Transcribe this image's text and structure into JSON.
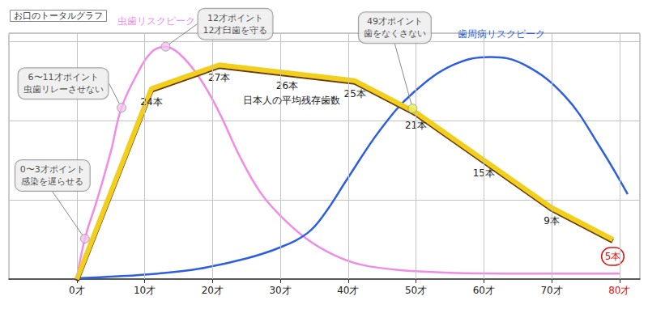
{
  "chart_data": {
    "type": "line",
    "title": "お口のトータルグラフ",
    "xlim": [
      -10,
      83
    ],
    "xticks": [
      {
        "value": 0,
        "label": "0才"
      },
      {
        "value": 10,
        "label": "10才"
      },
      {
        "value": 20,
        "label": "20才"
      },
      {
        "value": 30,
        "label": "30才"
      },
      {
        "value": 40,
        "label": "40才"
      },
      {
        "value": 50,
        "label": "50才"
      },
      {
        "value": 60,
        "label": "60才"
      },
      {
        "value": 70,
        "label": "70才"
      },
      {
        "value": 80,
        "label": "80才"
      }
    ],
    "ylim": [
      0,
      31
    ],
    "yticks": [
      0,
      10,
      20,
      30
    ],
    "grid": true,
    "tick_labels": "x",
    "series": [
      {
        "name": "虫歯リスクピーク",
        "color": "#f08ce6",
        "line_style": "solid",
        "x": [
          0,
          1.2,
          3,
          5,
          6.6,
          9,
          11,
          13,
          15,
          18,
          21,
          24,
          27,
          30,
          34,
          38,
          42,
          48,
          55,
          65,
          80
        ],
        "values": [
          0,
          5.1,
          10,
          16,
          21.6,
          26,
          28.6,
          29.3,
          28.5,
          25.5,
          21,
          15.5,
          11,
          8,
          5,
          3,
          1.8,
          1.1,
          0.8,
          0.7,
          0.7
        ]
      },
      {
        "name": "歯周病リスクピーク",
        "color": "#2d5fe0",
        "line_style": "solid",
        "x": [
          0,
          5,
          12,
          18,
          25,
          30,
          34,
          36.5,
          40,
          44.8,
          49.6,
          55.5,
          61,
          66,
          72,
          77,
          81.2
        ],
        "values": [
          0.1,
          0.3,
          0.7,
          1.3,
          2.6,
          4,
          5.8,
          8.2,
          12.8,
          18.9,
          23.5,
          27,
          28,
          27,
          23,
          16.8,
          10.7
        ]
      },
      {
        "name": "日本人の平均残存歯数",
        "color": "#f2cf1d",
        "line_style": "solid",
        "data_labels": true,
        "x": [
          0,
          11,
          21,
          31,
          41,
          50,
          60,
          70,
          79
        ],
        "values": [
          0,
          24,
          27,
          26,
          25,
          21,
          15,
          9,
          5
        ],
        "value_labels": [
          null,
          "24本",
          "27本",
          "26本",
          "25本",
          "21本",
          "15本",
          "9本",
          "5本"
        ]
      }
    ],
    "annotations": [
      {
        "text": "0〜3才ポイント\n感染を遅らせる",
        "x": 1.2,
        "y": 5.1,
        "color": "#f3c2ee"
      },
      {
        "text": "6〜11才ポイント\n虫歯リレーさせない",
        "x": 6.6,
        "y": 21.6,
        "color": "#f3c2ee"
      },
      {
        "text": "12才ポイント\n12才臼歯を守る",
        "x": 13.1,
        "y": 29.3,
        "color": "#f3c2ee"
      },
      {
        "text": "49才ポイント\n歯をなくさない",
        "x": 49.5,
        "y": 21.5,
        "color": "#e6ef5e"
      }
    ]
  }
}
